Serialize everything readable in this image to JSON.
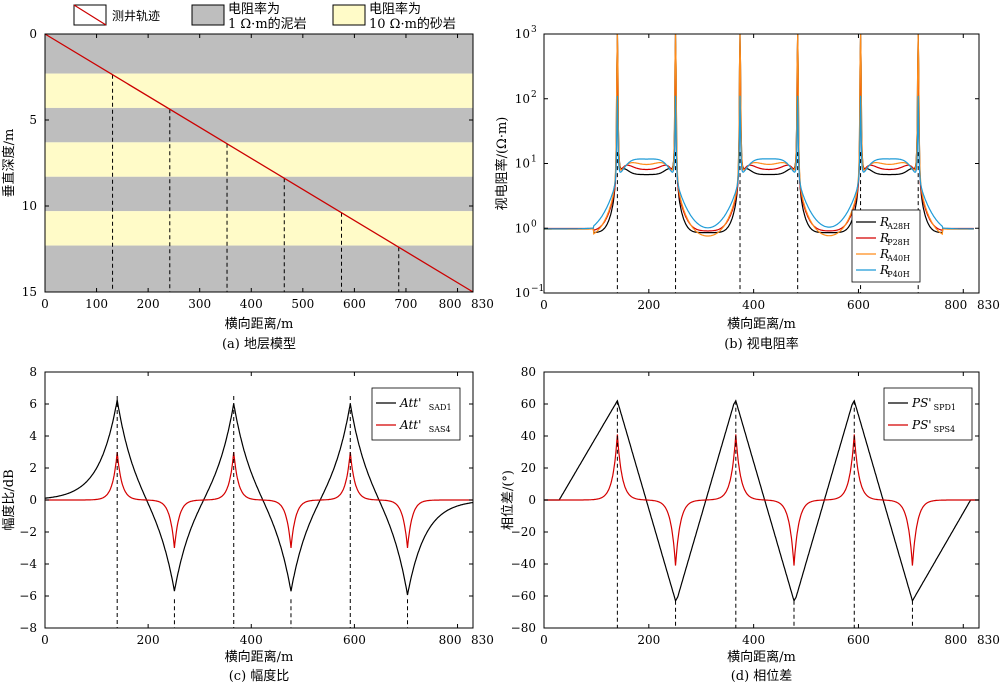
{
  "colors": {
    "mudstone": "#bebebe",
    "sandstone": "#fffbc8",
    "trajectory": "#cc0000",
    "black": "#000000",
    "red": "#d40000",
    "orange": "#ff8c1a",
    "blue": "#1f9bd7"
  },
  "legend_a": {
    "trajectory": "测井轨迹",
    "mud_line1": "电阻率为",
    "mud_line2": "1 Ω·m的泥岩",
    "sand_line1": "电阻率为",
    "sand_line2": "10 Ω·m的砂岩"
  },
  "chart_data": [
    {
      "id": "a",
      "type": "area",
      "caption": "(a) 地层模型",
      "xlabel": "横向距离/m",
      "ylabel": "垂直深度/m",
      "xlim": [
        0,
        830
      ],
      "ylim": [
        15,
        0
      ],
      "xticks": [
        0,
        100,
        200,
        300,
        400,
        500,
        600,
        700,
        800,
        830
      ],
      "yticks": [
        0,
        5,
        10,
        15
      ],
      "layers": [
        {
          "top": 0,
          "bottom": 2.3,
          "rock": "mudstone"
        },
        {
          "top": 2.3,
          "bottom": 4.3,
          "rock": "sandstone"
        },
        {
          "top": 4.3,
          "bottom": 6.3,
          "rock": "mudstone"
        },
        {
          "top": 6.3,
          "bottom": 8.3,
          "rock": "sandstone"
        },
        {
          "top": 8.3,
          "bottom": 10.3,
          "rock": "mudstone"
        },
        {
          "top": 10.3,
          "bottom": 12.3,
          "rock": "sandstone"
        },
        {
          "top": 12.3,
          "bottom": 15,
          "rock": "mudstone"
        }
      ],
      "trajectory": {
        "x": [
          0,
          830
        ],
        "y": [
          0,
          15
        ]
      },
      "boundary_x": [
        131,
        242,
        353,
        464,
        575,
        686
      ]
    },
    {
      "id": "b",
      "type": "line",
      "caption": "(b) 视电阻率",
      "xlabel": "横向距离/m",
      "ylabel": "视电阻率/(Ω·m)",
      "xlim": [
        0,
        830
      ],
      "ylim": [
        0.1,
        1000
      ],
      "yscale": "log",
      "xticks": [
        0,
        200,
        400,
        600,
        800,
        830
      ],
      "yticks": [
        0.1,
        1,
        10,
        100,
        1000
      ],
      "ytick_labels": [
        "10",
        "10",
        "10",
        "10",
        "10"
      ],
      "ytick_exps": [
        "−1",
        "0",
        "1",
        "2",
        "3"
      ],
      "boundaries": [
        140,
        251,
        374,
        484,
        604,
        714
      ],
      "legend": [
        {
          "main": "R",
          "sub": "A28H"
        },
        {
          "main": "R",
          "sub": "P28H"
        },
        {
          "main": "R",
          "sub": "A40H"
        },
        {
          "main": "R",
          "sub": "P40H"
        }
      ]
    },
    {
      "id": "c",
      "type": "line",
      "caption": "(c) 幅度比",
      "xlabel": "横向距离/m",
      "ylabel": "幅度比/dB",
      "xlim": [
        0,
        830
      ],
      "ylim": [
        -8,
        8
      ],
      "xticks": [
        0,
        200,
        400,
        600,
        800,
        830
      ],
      "yticks": [
        -8,
        -6,
        -4,
        -2,
        0,
        2,
        4,
        6,
        8
      ],
      "boundaries": [
        140,
        251,
        366,
        477,
        592,
        703
      ],
      "legend": [
        {
          "main": "Att'",
          "sub": "SAD1"
        },
        {
          "main": "Att'",
          "sub": "SAS4"
        }
      ],
      "series": [
        {
          "peak": 6.5,
          "trough": -6.2
        },
        {
          "peak": 3.0,
          "trough": -3.0
        }
      ]
    },
    {
      "id": "d",
      "type": "line",
      "caption": "(d) 相位差",
      "xlabel": "横向距离/m",
      "ylabel": "相位差/(°)",
      "xlim": [
        0,
        830
      ],
      "ylim": [
        -80,
        80
      ],
      "xticks": [
        0,
        200,
        400,
        600,
        800,
        830
      ],
      "yticks": [
        -80,
        -60,
        -40,
        -20,
        0,
        20,
        40,
        60,
        80
      ],
      "boundaries": [
        140,
        251,
        366,
        477,
        592,
        703
      ],
      "legend": [
        {
          "main": "PS'",
          "sub": "SPD1"
        },
        {
          "main": "PS'",
          "sub": "SPS4"
        }
      ],
      "series": [
        {
          "peak": 62,
          "trough": -63
        },
        {
          "peak": 41,
          "trough": -41
        }
      ]
    }
  ]
}
